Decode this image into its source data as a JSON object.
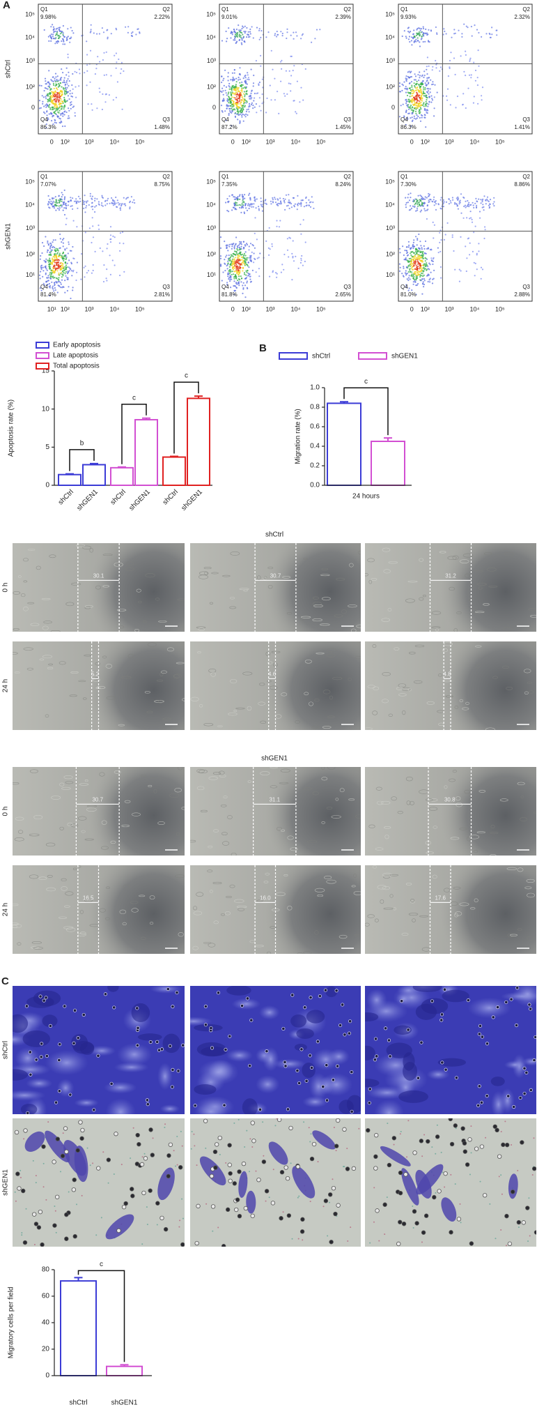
{
  "panel_labels": [
    "A",
    "B",
    "C"
  ],
  "flow": {
    "quadrant_names": [
      "Q1",
      "Q2",
      "Q3",
      "Q4"
    ],
    "rows": [
      {
        "label": "shCtrl",
        "yticks": [
          "10⁵",
          "10⁴",
          "10³",
          "10²",
          "0"
        ],
        "plots": [
          {
            "xticks": [
              "0",
              "10²",
              "10³",
              "10⁴",
              "10⁵"
            ],
            "percents": [
              "9.98%",
              "2.22%",
              "1.48%",
              "86.3%"
            ]
          },
          {
            "xticks": [
              "0",
              "10²",
              "10³",
              "10⁴",
              "10⁵"
            ],
            "percents": [
              "9.01%",
              "2.39%",
              "1.45%",
              "87.2%"
            ]
          },
          {
            "xticks": [
              "0",
              "10²",
              "10³",
              "10⁴",
              "10⁵"
            ],
            "percents": [
              "9.93%",
              "2.32%",
              "1.41%",
              "86.3%"
            ]
          }
        ]
      },
      {
        "label": "shGEN1",
        "yticks": [
          "10⁵",
          "10⁴",
          "10³",
          "10²",
          "10¹"
        ],
        "plots": [
          {
            "xticks": [
              "10¹",
              "10²",
              "10³",
              "10⁴",
              "10⁵"
            ],
            "percents": [
              "7.07%",
              "8.75%",
              "2.81%",
              "81.4%"
            ]
          },
          {
            "xticks": [
              "0",
              "10²",
              "10³",
              "10⁴",
              "10⁵"
            ],
            "percents": [
              "7.35%",
              "8.24%",
              "2.65%",
              "81.8%"
            ]
          },
          {
            "xticks": [
              "0",
              "10²",
              "10³",
              "10⁴",
              "10⁵"
            ],
            "percents": [
              "7.30%",
              "8.86%",
              "2.88%",
              "81.0%"
            ]
          }
        ]
      }
    ]
  },
  "chart_data": [
    {
      "type": "grouped_bar",
      "y_label": "Apoptosis rate (%)",
      "categories": [
        "shCtrl",
        "shGEN1"
      ],
      "series": [
        {
          "name": "Early apoptosis",
          "color": "#3b3bd6",
          "values": [
            1.4,
            2.7
          ],
          "errors": [
            0.1,
            0.15
          ],
          "significance": "b"
        },
        {
          "name": "Late apoptosis",
          "color": "#d24fd2",
          "values": [
            2.3,
            8.6
          ],
          "errors": [
            0.1,
            0.2
          ],
          "significance": "c"
        },
        {
          "name": "Total apoptosis",
          "color": "#e02020",
          "values": [
            3.7,
            11.4
          ],
          "errors": [
            0.1,
            0.3
          ],
          "significance": "c"
        }
      ],
      "ylim": [
        0,
        15
      ],
      "yticks": [
        0,
        5,
        10,
        15
      ],
      "legend": "top-left"
    },
    {
      "type": "bar",
      "y_label": "Migration rate (%)",
      "categories": [
        "24 hours"
      ],
      "series": [
        {
          "name": "shCtrl",
          "color": "#3b3bd6",
          "values": [
            0.84
          ],
          "errors": [
            0.015
          ]
        },
        {
          "name": "shGEN1",
          "color": "#d24fd2",
          "values": [
            0.45
          ],
          "errors": [
            0.035
          ]
        }
      ],
      "significance": "c",
      "ylim": [
        0,
        1.0
      ],
      "yticks": [
        {
          "value": 0,
          "label": "0.0"
        },
        {
          "value": 0.2,
          "label": "0.2"
        },
        {
          "value": 0.4,
          "label": "0.4"
        },
        {
          "value": 0.6,
          "label": "0.6"
        },
        {
          "value": 0.8,
          "label": "0.8"
        },
        {
          "value": 1.0,
          "label": "1.0"
        }
      ],
      "legend": "top"
    },
    {
      "type": "bar",
      "y_label": "Migratory cells per field",
      "categories": [
        "shCtrl",
        "shGEN1"
      ],
      "values": [
        71.5,
        7
      ],
      "errors": [
        2.5,
        1.2
      ],
      "colors": [
        "#3b3bd6",
        "#d24fd2"
      ],
      "significance": "c",
      "ylim": [
        0,
        80
      ],
      "yticks": [
        0,
        20,
        40,
        60,
        80
      ]
    }
  ],
  "wound": {
    "groups": [
      {
        "title": "shCtrl",
        "rows": [
          {
            "label": "0 h",
            "gaps": [
              "30.1",
              "30.7",
              "31.2"
            ]
          },
          {
            "label": "24 h",
            "gaps": [
              "5.2",
              "4.6",
              "4.8"
            ]
          }
        ]
      },
      {
        "title": "shGEN1",
        "rows": [
          {
            "label": "0 h",
            "gaps": [
              "30.7",
              "31.1",
              "30.8"
            ]
          },
          {
            "label": "24 h",
            "gaps": [
              "16.5",
              "16.0",
              "17.6"
            ]
          }
        ]
      }
    ]
  },
  "transwell": {
    "rows": [
      "shCtrl",
      "shGEN1"
    ]
  }
}
